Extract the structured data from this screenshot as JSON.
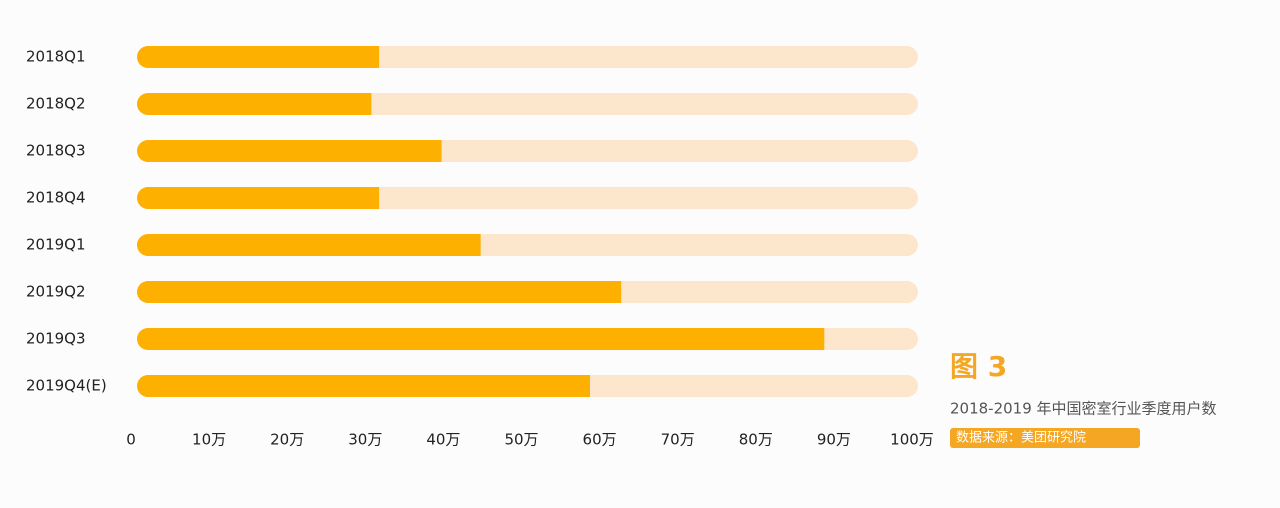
{
  "chart_data": {
    "type": "barh",
    "title": "图 3",
    "subtitle": "2018-2019 年中国密室行业季度用户数",
    "source": "数据来源：美团研究院",
    "categories": [
      "2018Q1",
      "2018Q2",
      "2018Q3",
      "2018Q4",
      "2019Q1",
      "2019Q2",
      "2019Q3",
      "2019Q4(E)"
    ],
    "values": [
      31,
      30,
      39,
      31,
      44,
      62,
      88,
      58
    ],
    "color": "#fdb000",
    "track_color": "#fde7cc",
    "xlim": [
      0,
      100
    ],
    "xticks": [
      0,
      {
        "value": 10,
        "label": "10万"
      },
      {
        "value": 20,
        "label": "20万"
      },
      {
        "value": 30,
        "label": "30万"
      },
      {
        "value": 40,
        "label": "40万"
      },
      {
        "value": 50,
        "label": "50万"
      },
      {
        "value": 60,
        "label": "60万"
      },
      {
        "value": 70,
        "label": "70万"
      },
      {
        "value": 80,
        "label": "80万"
      },
      {
        "value": 90,
        "label": "90万"
      },
      {
        "value": 100,
        "label": "100万"
      }
    ]
  }
}
